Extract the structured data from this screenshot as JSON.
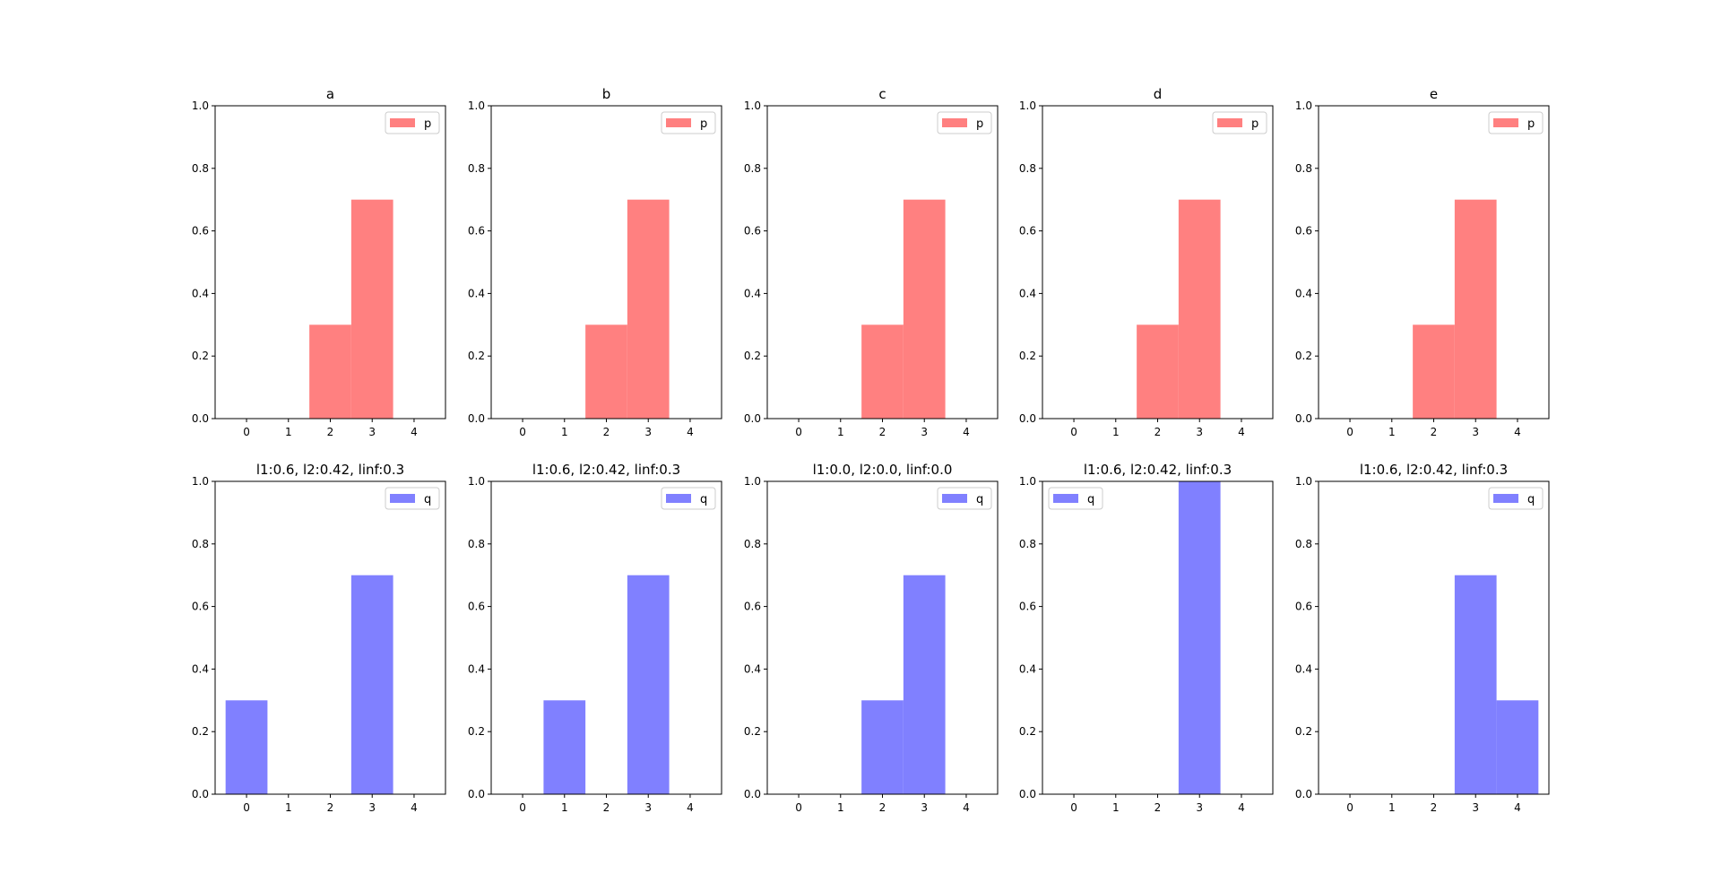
{
  "chart_data": [
    {
      "type": "bar",
      "title": "a",
      "categories": [
        0,
        1,
        2,
        3,
        4
      ],
      "series": [
        {
          "name": "p",
          "values": [
            0,
            0,
            0.3,
            0.7,
            0
          ]
        }
      ],
      "ylim": [
        0,
        1
      ],
      "xlim": [
        -0.75,
        4.75
      ],
      "yticks": [
        "0.0",
        "0.2",
        "0.4",
        "0.6",
        "0.8",
        "1.0"
      ],
      "legend": "upper right",
      "color": "#ff8080",
      "grid": false
    },
    {
      "type": "bar",
      "title": "b",
      "categories": [
        0,
        1,
        2,
        3,
        4
      ],
      "series": [
        {
          "name": "p",
          "values": [
            0,
            0,
            0.3,
            0.7,
            0
          ]
        }
      ],
      "ylim": [
        0,
        1
      ],
      "xlim": [
        -0.75,
        4.75
      ],
      "yticks": [
        "0.0",
        "0.2",
        "0.4",
        "0.6",
        "0.8",
        "1.0"
      ],
      "legend": "upper right",
      "color": "#ff8080",
      "grid": false
    },
    {
      "type": "bar",
      "title": "c",
      "categories": [
        0,
        1,
        2,
        3,
        4
      ],
      "series": [
        {
          "name": "p",
          "values": [
            0,
            0,
            0.3,
            0.7,
            0
          ]
        }
      ],
      "ylim": [
        0,
        1
      ],
      "xlim": [
        -0.75,
        4.75
      ],
      "yticks": [
        "0.0",
        "0.2",
        "0.4",
        "0.6",
        "0.8",
        "1.0"
      ],
      "legend": "upper right",
      "color": "#ff8080",
      "grid": false
    },
    {
      "type": "bar",
      "title": "d",
      "categories": [
        0,
        1,
        2,
        3,
        4
      ],
      "series": [
        {
          "name": "p",
          "values": [
            0,
            0,
            0.3,
            0.7,
            0
          ]
        }
      ],
      "ylim": [
        0,
        1
      ],
      "xlim": [
        -0.75,
        4.75
      ],
      "yticks": [
        "0.0",
        "0.2",
        "0.4",
        "0.6",
        "0.8",
        "1.0"
      ],
      "legend": "upper right",
      "color": "#ff8080",
      "grid": false
    },
    {
      "type": "bar",
      "title": "e",
      "categories": [
        0,
        1,
        2,
        3,
        4
      ],
      "series": [
        {
          "name": "p",
          "values": [
            0,
            0,
            0.3,
            0.7,
            0
          ]
        }
      ],
      "ylim": [
        0,
        1
      ],
      "xlim": [
        -0.75,
        4.75
      ],
      "yticks": [
        "0.0",
        "0.2",
        "0.4",
        "0.6",
        "0.8",
        "1.0"
      ],
      "legend": "upper right",
      "color": "#ff8080",
      "grid": false
    },
    {
      "type": "bar",
      "title": "l1:0.6, l2:0.42, linf:0.3",
      "categories": [
        0,
        1,
        2,
        3,
        4
      ],
      "series": [
        {
          "name": "q",
          "values": [
            0.3,
            0,
            0,
            0.7,
            0
          ]
        }
      ],
      "ylim": [
        0,
        1
      ],
      "xlim": [
        -0.75,
        4.75
      ],
      "yticks": [
        "0.0",
        "0.2",
        "0.4",
        "0.6",
        "0.8",
        "1.0"
      ],
      "legend": "upper right",
      "color": "#8080ff",
      "grid": false
    },
    {
      "type": "bar",
      "title": "l1:0.6, l2:0.42, linf:0.3",
      "categories": [
        0,
        1,
        2,
        3,
        4
      ],
      "series": [
        {
          "name": "q",
          "values": [
            0,
            0.3,
            0,
            0.7,
            0
          ]
        }
      ],
      "ylim": [
        0,
        1
      ],
      "xlim": [
        -0.75,
        4.75
      ],
      "yticks": [
        "0.0",
        "0.2",
        "0.4",
        "0.6",
        "0.8",
        "1.0"
      ],
      "legend": "upper right",
      "color": "#8080ff",
      "grid": false
    },
    {
      "type": "bar",
      "title": "l1:0.0, l2:0.0, linf:0.0",
      "categories": [
        0,
        1,
        2,
        3,
        4
      ],
      "series": [
        {
          "name": "q",
          "values": [
            0,
            0,
            0.3,
            0.7,
            0
          ]
        }
      ],
      "ylim": [
        0,
        1
      ],
      "xlim": [
        -0.75,
        4.75
      ],
      "yticks": [
        "0.0",
        "0.2",
        "0.4",
        "0.6",
        "0.8",
        "1.0"
      ],
      "legend": "upper right",
      "color": "#8080ff",
      "grid": false
    },
    {
      "type": "bar",
      "title": "l1:0.6, l2:0.42, linf:0.3",
      "categories": [
        0,
        1,
        2,
        3,
        4
      ],
      "series": [
        {
          "name": "q",
          "values": [
            0,
            0,
            0,
            1.0,
            0
          ]
        }
      ],
      "ylim": [
        0,
        1
      ],
      "xlim": [
        -0.75,
        4.75
      ],
      "yticks": [
        "0.0",
        "0.2",
        "0.4",
        "0.6",
        "0.8",
        "1.0"
      ],
      "legend": "upper left",
      "color": "#8080ff",
      "grid": false
    },
    {
      "type": "bar",
      "title": "l1:0.6, l2:0.42, linf:0.3",
      "categories": [
        0,
        1,
        2,
        3,
        4
      ],
      "series": [
        {
          "name": "q",
          "values": [
            0,
            0,
            0,
            0.7,
            0.3
          ]
        }
      ],
      "ylim": [
        0,
        1
      ],
      "xlim": [
        -0.75,
        4.75
      ],
      "yticks": [
        "0.0",
        "0.2",
        "0.4",
        "0.6",
        "0.8",
        "1.0"
      ],
      "legend": "upper right",
      "color": "#8080ff",
      "grid": false
    }
  ]
}
